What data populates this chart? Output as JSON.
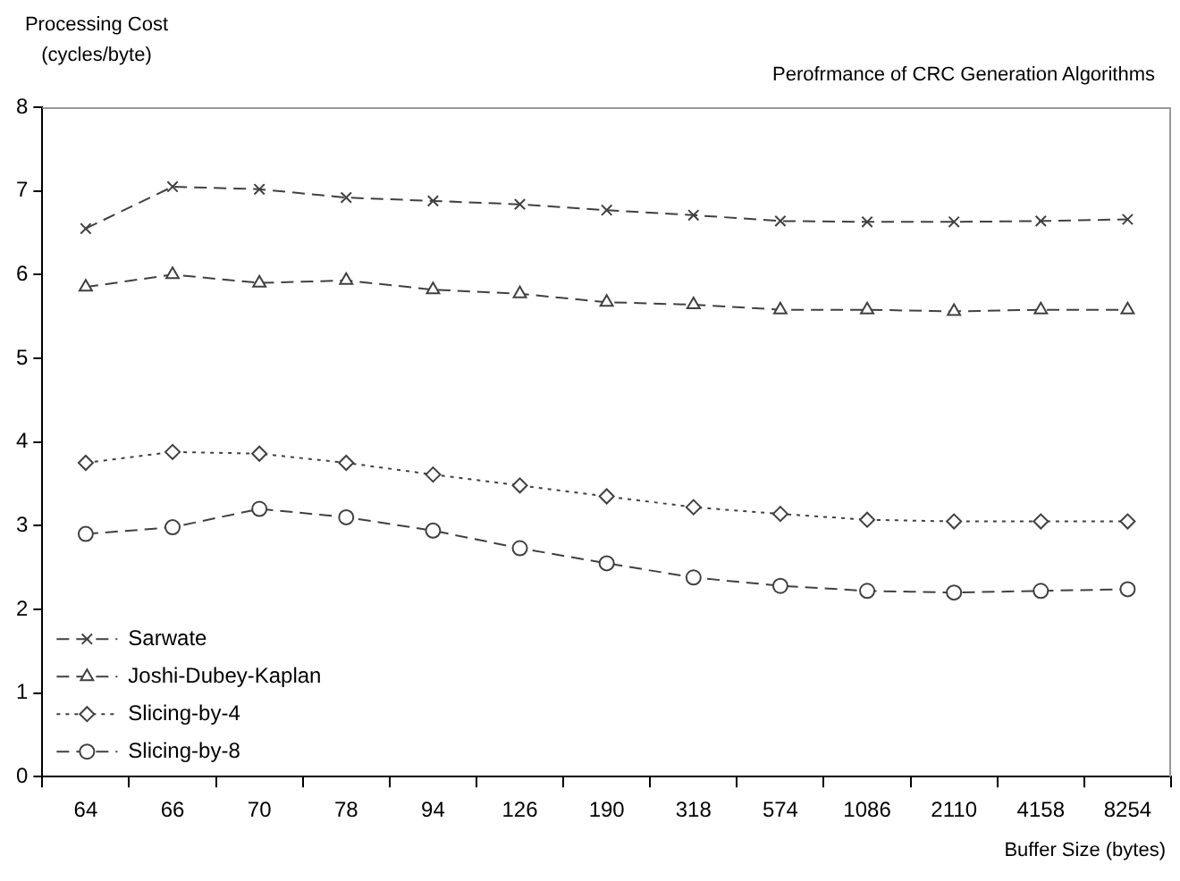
{
  "chart_data": {
    "type": "line",
    "title": "Perofrmance of CRC Generation Algorithms",
    "xlabel": "Buffer Size (bytes)",
    "ylabel": "Processing Cost (cycles/byte)",
    "categories": [
      "64",
      "66",
      "70",
      "78",
      "94",
      "126",
      "190",
      "318",
      "574",
      "1086",
      "2110",
      "4158",
      "8254"
    ],
    "series": [
      {
        "name": "Sarwate",
        "color": "#404040",
        "marker": "cross",
        "line_style": "dashed",
        "values": [
          6.55,
          7.05,
          7.02,
          6.92,
          6.88,
          6.84,
          6.77,
          6.71,
          6.64,
          6.63,
          6.63,
          6.64,
          6.66
        ]
      },
      {
        "name": "Joshi-Dubey-Kaplan",
        "color": "#404040",
        "marker": "triangle",
        "line_style": "dashed",
        "values": [
          5.85,
          6.0,
          5.9,
          5.93,
          5.82,
          5.77,
          5.67,
          5.64,
          5.58,
          5.58,
          5.56,
          5.58,
          5.58
        ]
      },
      {
        "name": "Slicing-by-4",
        "color": "#404040",
        "marker": "diamond",
        "line_style": "dotted",
        "values": [
          3.75,
          3.88,
          3.86,
          3.75,
          3.61,
          3.48,
          3.35,
          3.22,
          3.14,
          3.07,
          3.05,
          3.05,
          3.05
        ]
      },
      {
        "name": "Slicing-by-8",
        "color": "#404040",
        "marker": "circle",
        "line_style": "dashed",
        "values": [
          2.9,
          2.98,
          3.2,
          3.1,
          2.94,
          2.73,
          2.55,
          2.38,
          2.28,
          2.22,
          2.2,
          2.22,
          2.24
        ]
      }
    ],
    "ylim": [
      0,
      8
    ],
    "yticks": [
      0,
      1,
      2,
      3,
      4,
      5,
      6,
      7,
      8
    ],
    "grid": false,
    "legend": "bottom left"
  }
}
